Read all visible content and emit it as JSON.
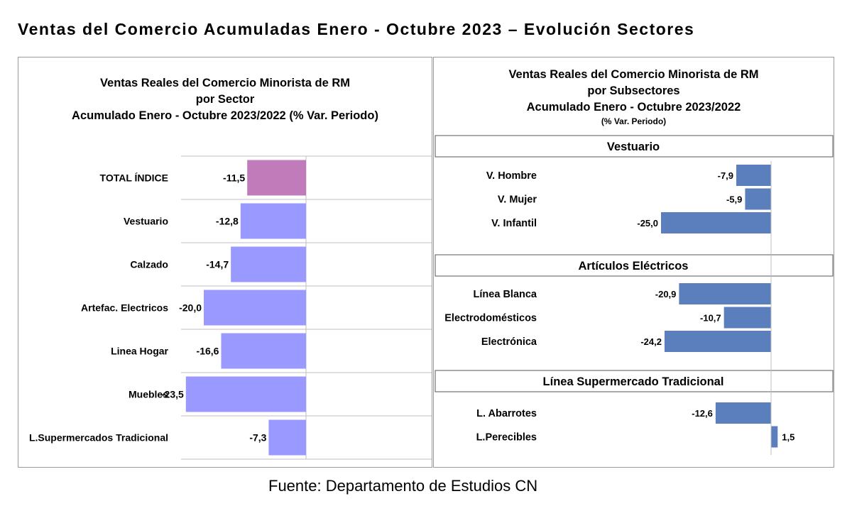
{
  "title": "Ventas del Comercio Acumuladas Enero - Octubre 2023 – Evolución Sectores",
  "source": "Fuente: Departamento de Estudios CN",
  "colors": {
    "highlight": "#C27BBA",
    "sector_bar": "#9999FF",
    "subsector_bar": "#5B7FBD",
    "grid": "#BFBFBF"
  },
  "chart_data": [
    {
      "type": "bar",
      "orientation": "horizontal",
      "title_lines": [
        "Ventas Reales del Comercio Minorista de RM",
        "por Sector",
        "Acumulado Enero - Octubre 2023/2022 (% Var. Periodo)"
      ],
      "categories": [
        "TOTAL ÍNDICE",
        "Vestuario",
        "Calzado",
        "Artefac. Electricos",
        "Linea Hogar",
        "Muebles",
        "L.Supermercados Tradicional"
      ],
      "values": [
        -11.5,
        -12.8,
        -14.7,
        -20.0,
        -16.6,
        -23.5,
        -7.3
      ],
      "value_labels": [
        "-11,5",
        "-12,8",
        "-14,7",
        "-20,0",
        "-16,6",
        "-23,5",
        "-7,3"
      ],
      "xlim": [
        -30,
        0
      ],
      "grid": true
    },
    {
      "type": "bar",
      "orientation": "horizontal",
      "title_lines": [
        "Ventas Reales del Comercio Minorista de RM",
        "por Subsectores",
        "Acumulado Enero - Octubre 2023/2022"
      ],
      "subtitle": "(% Var. Periodo)",
      "xlim": [
        -30,
        3
      ],
      "grid": false,
      "groups": [
        {
          "name": "Vestuario",
          "categories": [
            "V. Hombre",
            "V. Mujer",
            "V. Infantil"
          ],
          "values": [
            -7.9,
            -5.9,
            -25.0
          ],
          "value_labels": [
            "-7,9",
            "-5,9",
            "-25,0"
          ]
        },
        {
          "name": "Artículos Eléctricos",
          "categories": [
            "Línea Blanca",
            "Electrodomésticos",
            "Electrónica"
          ],
          "values": [
            -20.9,
            -10.7,
            -24.2
          ],
          "value_labels": [
            "-20,9",
            "-10,7",
            "-24,2"
          ]
        },
        {
          "name": "Línea  Supermercado Tradicional",
          "categories": [
            "L. Abarrotes",
            "L.Perecibles"
          ],
          "values": [
            -12.6,
            1.5
          ],
          "value_labels": [
            "-12,6",
            "1,5"
          ]
        }
      ]
    }
  ]
}
